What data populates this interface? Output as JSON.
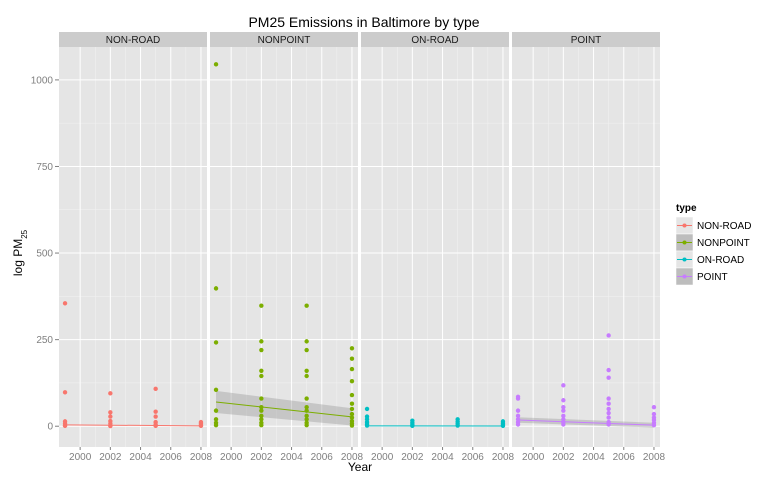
{
  "chart_data": {
    "type": "scatter",
    "title": "PM25 Emissions in Baltimore by type",
    "xlabel": "Year",
    "ylabel_main": "log PM",
    "ylabel_sub": "25",
    "xlim": [
      1998.6,
      2008.4
    ],
    "ylim": [
      -60,
      1095
    ],
    "x_ticks": [
      2000,
      2002,
      2004,
      2006,
      2008
    ],
    "x_tick_labels": [
      "2000",
      "2002",
      "2004",
      "2006",
      "2008"
    ],
    "y_ticks": [
      0,
      250,
      500,
      750,
      1000
    ],
    "y_tick_labels": [
      "0",
      "250",
      "500",
      "750",
      "1000"
    ],
    "grid": true,
    "legend": {
      "title": "type",
      "position": "right",
      "items": [
        "NON-ROAD",
        "NONPOINT",
        "ON-ROAD",
        "POINT"
      ]
    },
    "series": [
      {
        "name": "NON-ROAD",
        "color": "#F8766D",
        "points": [
          {
            "x": 1999,
            "y": 355
          },
          {
            "x": 1999,
            "y": 98
          },
          {
            "x": 1999,
            "y": 14
          },
          {
            "x": 1999,
            "y": 8
          },
          {
            "x": 1999,
            "y": 3
          },
          {
            "x": 1999,
            "y": 1
          },
          {
            "x": 2002,
            "y": 95
          },
          {
            "x": 2002,
            "y": 40
          },
          {
            "x": 2002,
            "y": 28
          },
          {
            "x": 2002,
            "y": 15
          },
          {
            "x": 2002,
            "y": 8
          },
          {
            "x": 2002,
            "y": 2
          },
          {
            "x": 2002,
            "y": 0.5
          },
          {
            "x": 2005,
            "y": 108
          },
          {
            "x": 2005,
            "y": 42
          },
          {
            "x": 2005,
            "y": 28
          },
          {
            "x": 2005,
            "y": 12
          },
          {
            "x": 2005,
            "y": 5
          },
          {
            "x": 2005,
            "y": 1
          },
          {
            "x": 2008,
            "y": 12
          },
          {
            "x": 2008,
            "y": 7
          },
          {
            "x": 2008,
            "y": 3
          },
          {
            "x": 2008,
            "y": 1
          }
        ],
        "fit": {
          "x": [
            1999,
            2008
          ],
          "y": [
            4,
            1
          ]
        }
      },
      {
        "name": "NONPOINT",
        "color": "#7CAE00",
        "points": [
          {
            "x": 1999,
            "y": 1045
          },
          {
            "x": 1999,
            "y": 398
          },
          {
            "x": 1999,
            "y": 242
          },
          {
            "x": 1999,
            "y": 105
          },
          {
            "x": 1999,
            "y": 45
          },
          {
            "x": 1999,
            "y": 20
          },
          {
            "x": 1999,
            "y": 10
          },
          {
            "x": 1999,
            "y": 3
          },
          {
            "x": 2002,
            "y": 348
          },
          {
            "x": 2002,
            "y": 245
          },
          {
            "x": 2002,
            "y": 220
          },
          {
            "x": 2002,
            "y": 160
          },
          {
            "x": 2002,
            "y": 145
          },
          {
            "x": 2002,
            "y": 80
          },
          {
            "x": 2002,
            "y": 55
          },
          {
            "x": 2002,
            "y": 45
          },
          {
            "x": 2002,
            "y": 30
          },
          {
            "x": 2002,
            "y": 20
          },
          {
            "x": 2002,
            "y": 10
          },
          {
            "x": 2002,
            "y": 3
          },
          {
            "x": 2005,
            "y": 348
          },
          {
            "x": 2005,
            "y": 245
          },
          {
            "x": 2005,
            "y": 220
          },
          {
            "x": 2005,
            "y": 160
          },
          {
            "x": 2005,
            "y": 145
          },
          {
            "x": 2005,
            "y": 80
          },
          {
            "x": 2005,
            "y": 55
          },
          {
            "x": 2005,
            "y": 45
          },
          {
            "x": 2005,
            "y": 30
          },
          {
            "x": 2005,
            "y": 20
          },
          {
            "x": 2005,
            "y": 10
          },
          {
            "x": 2005,
            "y": 3
          },
          {
            "x": 2008,
            "y": 225
          },
          {
            "x": 2008,
            "y": 195
          },
          {
            "x": 2008,
            "y": 165
          },
          {
            "x": 2008,
            "y": 130
          },
          {
            "x": 2008,
            "y": 90
          },
          {
            "x": 2008,
            "y": 65
          },
          {
            "x": 2008,
            "y": 50
          },
          {
            "x": 2008,
            "y": 35
          },
          {
            "x": 2008,
            "y": 25
          },
          {
            "x": 2008,
            "y": 15
          },
          {
            "x": 2008,
            "y": 8
          },
          {
            "x": 2008,
            "y": 2
          }
        ],
        "fit": {
          "x": [
            1999,
            2008
          ],
          "y": [
            70,
            27
          ]
        },
        "band": {
          "x": [
            1999,
            2008
          ],
          "upper": [
            102,
            52
          ],
          "lower": [
            38,
            2
          ]
        }
      },
      {
        "name": "ON-ROAD",
        "color": "#00BFC4",
        "points": [
          {
            "x": 1999,
            "y": 50
          },
          {
            "x": 1999,
            "y": 28
          },
          {
            "x": 1999,
            "y": 20
          },
          {
            "x": 1999,
            "y": 12
          },
          {
            "x": 1999,
            "y": 6
          },
          {
            "x": 1999,
            "y": 2
          },
          {
            "x": 2002,
            "y": 16
          },
          {
            "x": 2002,
            "y": 10
          },
          {
            "x": 2002,
            "y": 5
          },
          {
            "x": 2002,
            "y": 1
          },
          {
            "x": 2005,
            "y": 20
          },
          {
            "x": 2005,
            "y": 13
          },
          {
            "x": 2005,
            "y": 7
          },
          {
            "x": 2005,
            "y": 2
          },
          {
            "x": 2008,
            "y": 14
          },
          {
            "x": 2008,
            "y": 9
          },
          {
            "x": 2008,
            "y": 4
          },
          {
            "x": 2008,
            "y": 1
          }
        ],
        "fit": {
          "x": [
            1999,
            2008
          ],
          "y": [
            1,
            0.5
          ]
        }
      },
      {
        "name": "POINT",
        "color": "#C77CFF",
        "points": [
          {
            "x": 1999,
            "y": 85
          },
          {
            "x": 1999,
            "y": 80
          },
          {
            "x": 1999,
            "y": 45
          },
          {
            "x": 1999,
            "y": 30
          },
          {
            "x": 1999,
            "y": 20
          },
          {
            "x": 1999,
            "y": 12
          },
          {
            "x": 1999,
            "y": 5
          },
          {
            "x": 2002,
            "y": 118
          },
          {
            "x": 2002,
            "y": 75
          },
          {
            "x": 2002,
            "y": 55
          },
          {
            "x": 2002,
            "y": 45
          },
          {
            "x": 2002,
            "y": 30
          },
          {
            "x": 2002,
            "y": 20
          },
          {
            "x": 2002,
            "y": 12
          },
          {
            "x": 2002,
            "y": 5
          },
          {
            "x": 2005,
            "y": 262
          },
          {
            "x": 2005,
            "y": 162
          },
          {
            "x": 2005,
            "y": 140
          },
          {
            "x": 2005,
            "y": 80
          },
          {
            "x": 2005,
            "y": 65
          },
          {
            "x": 2005,
            "y": 50
          },
          {
            "x": 2005,
            "y": 38
          },
          {
            "x": 2005,
            "y": 25
          },
          {
            "x": 2005,
            "y": 12
          },
          {
            "x": 2005,
            "y": 5
          },
          {
            "x": 2008,
            "y": 55
          },
          {
            "x": 2008,
            "y": 35
          },
          {
            "x": 2008,
            "y": 25
          },
          {
            "x": 2008,
            "y": 18
          },
          {
            "x": 2008,
            "y": 10
          },
          {
            "x": 2008,
            "y": 3
          }
        ],
        "fit": {
          "x": [
            1999,
            2008
          ],
          "y": [
            18,
            3
          ]
        },
        "band": {
          "x": [
            1999,
            2008
          ],
          "upper": [
            26,
            10
          ],
          "lower": [
            10,
            -4
          ]
        }
      }
    ]
  }
}
